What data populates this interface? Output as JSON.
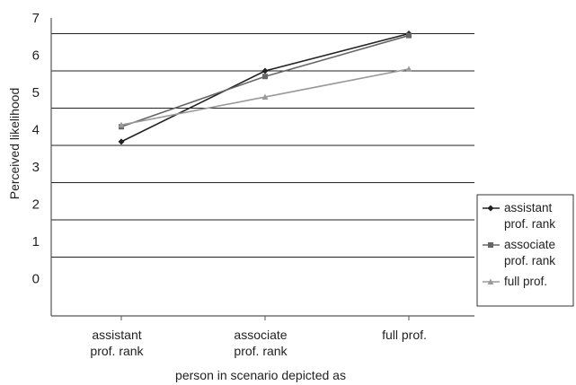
{
  "chart_data": {
    "type": "line",
    "title": "",
    "xlabel": "person in scenario depicted as",
    "ylabel": "Perceived likelihood",
    "categories": [
      [
        "assistant",
        "prof. rank"
      ],
      [
        "associate",
        "prof. rank"
      ],
      [
        "full prof."
      ]
    ],
    "y_tick_labels": [
      "0",
      "1",
      "2",
      "3",
      "4",
      "5",
      "6",
      "7"
    ],
    "grid": true,
    "legend_position": "right",
    "series": [
      {
        "name_lines": [
          "assistant",
          "prof. rank"
        ],
        "values": [
          3.1,
          5.0,
          6.0
        ],
        "color": "#222222",
        "marker": "diamond"
      },
      {
        "name_lines": [
          "associate",
          "prof. rank"
        ],
        "values": [
          3.5,
          4.85,
          5.95
        ],
        "color": "#666666",
        "marker": "square"
      },
      {
        "name_lines": [
          "full prof."
        ],
        "values": [
          3.55,
          4.3,
          5.05
        ],
        "color": "#9a9a9a",
        "marker": "triangle"
      }
    ]
  }
}
